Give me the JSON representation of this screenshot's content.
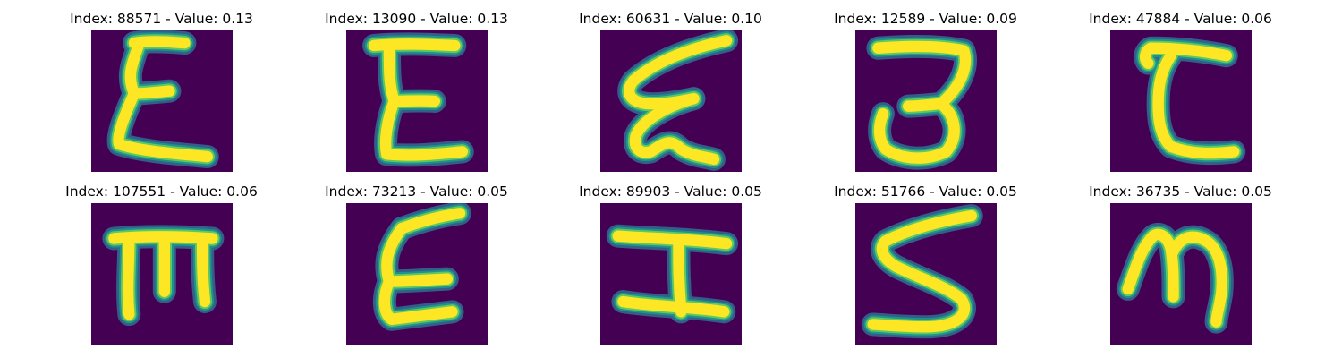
{
  "colors": {
    "background": "#440154",
    "ink": "#fde725",
    "figure_background": "#ffffff"
  },
  "panels": [
    {
      "title": "Index: 88571 - Value: 0.13",
      "glyph": "epsilon-like character"
    },
    {
      "title": "Index: 13090 - Value: 0.13",
      "glyph": "E-like character"
    },
    {
      "title": "Index: 60631 - Value: 0.10",
      "glyph": "cursive epsilon character"
    },
    {
      "title": "Index: 12589 - Value: 0.09",
      "glyph": "3-like character"
    },
    {
      "title": "Index: 47884 - Value: 0.06",
      "glyph": "C-like character"
    },
    {
      "title": "Index: 107551 - Value: 0.06",
      "glyph": "E rotated character"
    },
    {
      "title": "Index: 73213 - Value: 0.05",
      "glyph": "epsilon-like character"
    },
    {
      "title": "Index: 89903 - Value: 0.05",
      "glyph": "H-like character"
    },
    {
      "title": "Index: 51766 - Value: 0.05",
      "glyph": "S-like character"
    },
    {
      "title": "Index: 36735 - Value: 0.05",
      "glyph": "m-like character"
    }
  ]
}
